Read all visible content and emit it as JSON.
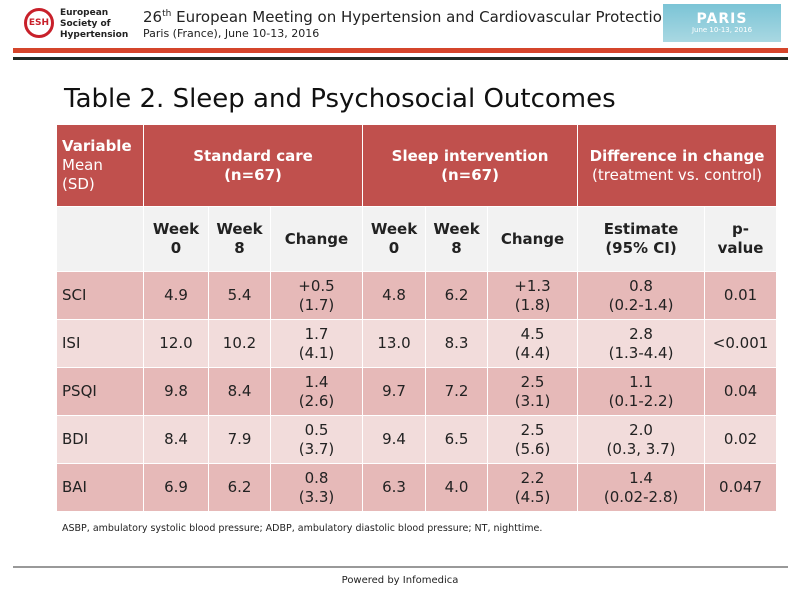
{
  "header": {
    "logo_mark": "ESH",
    "logo_lines": [
      "European",
      "Society of",
      "Hypertension"
    ],
    "meeting_number": "26",
    "meeting_ordinal": "th",
    "meeting_title": " European Meeting on Hypertension and Cardiovascular Protection",
    "meeting_subtitle": "Paris (France), June 10-13, 2016",
    "badge_word": "PARIS",
    "badge_date": "June 10-13, 2016"
  },
  "slide": {
    "title": "Table 2. Sleep and Psychosocial Outcomes"
  },
  "table": {
    "head_variable": "Variable",
    "head_variable_sub1": "Mean",
    "head_variable_sub2": "(SD)",
    "head_standard": "Standard care",
    "head_standard_n": "(n=67)",
    "head_sleep": "Sleep intervention",
    "head_sleep_n": "(n=67)",
    "head_diff": "Difference in change",
    "head_diff_sub": "(treatment vs. control)",
    "sub_week_label": "Week",
    "sub_week0": "0",
    "sub_week8": "8",
    "sub_change": "Change",
    "sub_estimate": "Estimate",
    "sub_ci": "(95% CI)",
    "sub_p1": "p-",
    "sub_p2": "value",
    "rows": [
      {
        "var": "SCI",
        "sc_w0": "4.9",
        "sc_w8": "5.4",
        "sc_ch": "+0.5",
        "sc_sd": "(1.7)",
        "si_w0": "4.8",
        "si_w8": "6.2",
        "si_ch": "+1.3",
        "si_sd": "(1.8)",
        "est": "0.8",
        "ci": "(0.2-1.4)",
        "p": "0.01"
      },
      {
        "var": "ISI",
        "sc_w0": "12.0",
        "sc_w8": "10.2",
        "sc_ch": "1.7",
        "sc_sd": "(4.1)",
        "si_w0": "13.0",
        "si_w8": "8.3",
        "si_ch": "4.5",
        "si_sd": "(4.4)",
        "est": "2.8",
        "ci": "(1.3-4.4)",
        "p": "<0.001"
      },
      {
        "var": "PSQI",
        "sc_w0": "9.8",
        "sc_w8": "8.4",
        "sc_ch": "1.4",
        "sc_sd": "(2.6)",
        "si_w0": "9.7",
        "si_w8": "7.2",
        "si_ch": "2.5",
        "si_sd": "(3.1)",
        "est": "1.1",
        "ci": "(0.1-2.2)",
        "p": "0.04"
      },
      {
        "var": "BDI",
        "sc_w0": "8.4",
        "sc_w8": "7.9",
        "sc_ch": "0.5",
        "sc_sd": "(3.7)",
        "si_w0": "9.4",
        "si_w8": "6.5",
        "si_ch": "2.5",
        "si_sd": "(5.6)",
        "est": "2.0",
        "ci": "(0.3, 3.7)",
        "p": "0.02"
      },
      {
        "var": "BAI",
        "sc_w0": "6.9",
        "sc_w8": "6.2",
        "sc_ch": "0.8",
        "sc_sd": "(3.3)",
        "si_w0": "6.3",
        "si_w8": "4.0",
        "si_ch": "2.2",
        "si_sd": "(4.5)",
        "est": "1.4",
        "ci": "(0.02-2.8)",
        "p": "0.047"
      }
    ]
  },
  "footnote": "ASBP, ambulatory systolic blood pressure; ADBP, ambulatory diastolic blood pressure; NT, nighttime.",
  "footer": {
    "powered_by": "Powered by Infomedica"
  },
  "colors": {
    "header_red": "#c0504d",
    "row_dark": "#e6b9b8",
    "row_light": "#f2dcdb",
    "rule_red": "#d4452b"
  }
}
